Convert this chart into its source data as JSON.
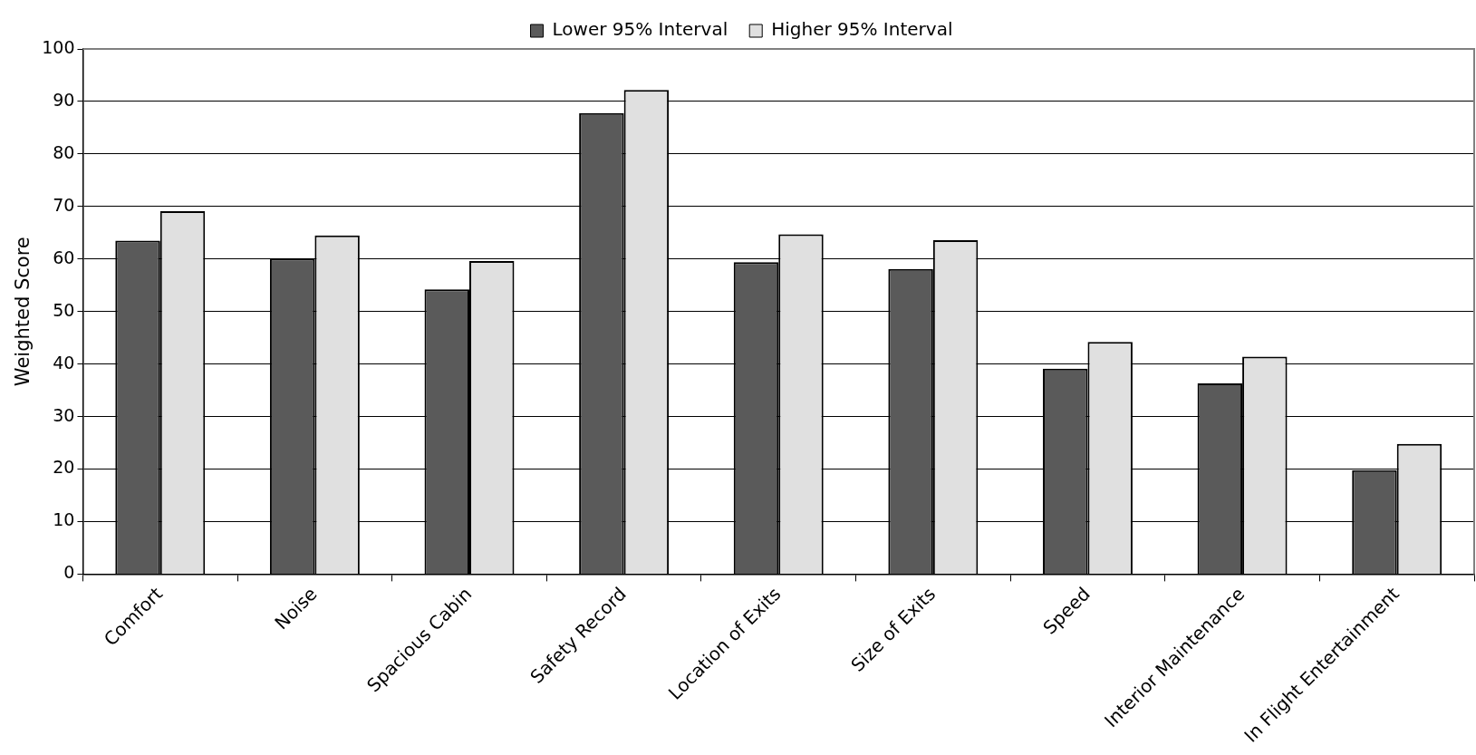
{
  "chart_data": {
    "type": "bar",
    "ylabel": "Weighted Score",
    "categories": [
      "Comfort",
      "Noise",
      "Spacious Cabin",
      "Safety Record",
      "Location of Exits",
      "Size of Exits",
      "Speed",
      "Interior Maintenance",
      "In Flight Entertainment"
    ],
    "series": [
      {
        "name": "Lower 95% Interval",
        "color": "#5a5a5a",
        "values": [
          63.5,
          60.1,
          54.2,
          87.8,
          59.4,
          58.1,
          39.1,
          36.3,
          19.8
        ]
      },
      {
        "name": "Higher 95% Interval",
        "color": "#e0e0e0",
        "values": [
          69.1,
          64.5,
          59.6,
          92.2,
          64.7,
          63.6,
          44.2,
          41.4,
          24.8
        ]
      }
    ],
    "ylim": [
      0,
      100
    ],
    "yticks": [
      0,
      10,
      20,
      30,
      40,
      50,
      60,
      70,
      80,
      90,
      100
    ],
    "grid": "y",
    "legend": "top"
  }
}
